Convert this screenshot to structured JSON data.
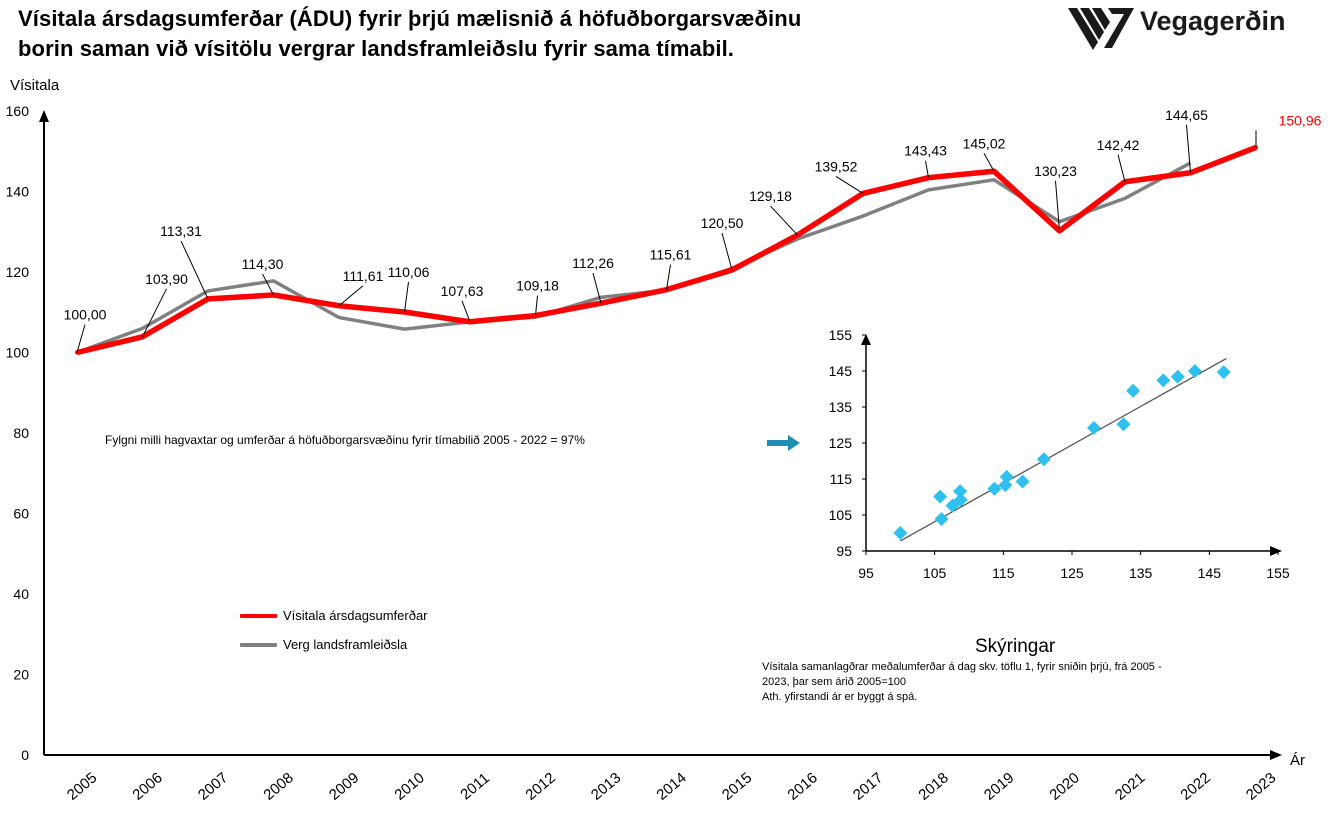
{
  "title": {
    "line1": "Vísitala ársdagsumferðar (ÁDU) fyrir þrjú mælisnið á höfuðborgarsvæðinu",
    "line2": "borin saman við vísitölu vergrar landsframleiðslu fyrir sama tímabil."
  },
  "logo": {
    "text": "Vegagerðin",
    "icon": "vegagerdin-logo-icon"
  },
  "note": "Fylgni milli hagvaxtar og umferðar á höfuðborgarsvæðinu fyrir tímabilið 2005 - 2022 = 97%",
  "legend": {
    "traffic": "Vísitala ársdagsumferðar",
    "gdp": "Verg landsframleiðsla"
  },
  "explanation": {
    "heading": "Skýringar",
    "line1": "Vísitala samanlagðrar meðalumferðar á dag  skv. töflu 1, fyrir sniðin  þrjú, frá 2005 -",
    "line2": "2023, þar sem árið 2005=100",
    "line3": "Ath. yfirstandi ár er byggt á spá."
  },
  "colors": {
    "traffic": "#ff0000",
    "gdp": "#808080",
    "scatter": "#2ec0ef",
    "arrow": "#1f8fb0"
  },
  "chart_data": [
    {
      "type": "line",
      "ylabel": "Vísitala",
      "xlabel": "Ár",
      "ylim": [
        0,
        160
      ],
      "yticks": [
        0,
        20,
        40,
        60,
        80,
        100,
        120,
        140,
        160
      ],
      "categories": [
        "2005",
        "2006",
        "2007",
        "2008",
        "2009",
        "2010",
        "2011",
        "2012",
        "2013",
        "2014",
        "2015",
        "2016",
        "2017",
        "2018",
        "2019",
        "2020",
        "2021",
        "2022",
        "2023"
      ],
      "series": [
        {
          "name": "Vísitala ársdagsumferðar",
          "values": [
            100.0,
            103.9,
            113.31,
            114.3,
            111.61,
            110.06,
            107.63,
            109.18,
            112.26,
            115.61,
            120.5,
            129.18,
            139.52,
            143.43,
            145.02,
            130.23,
            142.42,
            144.65,
            150.96
          ],
          "labels": [
            "100,00",
            "103,90",
            "113,31",
            "114,30",
            "111,61",
            "110,06",
            "107,63",
            "109,18",
            "112,26",
            "115,61",
            "120,50",
            "129,18",
            "139,52",
            "143,43",
            "145,02",
            "130,23",
            "142,42",
            "144,65",
            "150,96"
          ]
        },
        {
          "name": "Verg landsframleiðsla",
          "values": [
            100.0,
            106.0,
            115.3,
            117.8,
            108.7,
            105.8,
            107.6,
            108.8,
            113.7,
            115.5,
            120.9,
            128.2,
            133.9,
            140.4,
            142.9,
            132.5,
            138.3,
            147.1,
            null
          ]
        }
      ]
    },
    {
      "type": "scatter",
      "xlim": [
        95,
        155
      ],
      "ylim": [
        95,
        155
      ],
      "xticks": [
        95,
        105,
        115,
        125,
        135,
        145,
        155
      ],
      "yticks": [
        95,
        105,
        115,
        125,
        135,
        145,
        155
      ],
      "points": [
        {
          "x": 100.0,
          "y": 100.0
        },
        {
          "x": 106.0,
          "y": 103.9
        },
        {
          "x": 115.3,
          "y": 113.3
        },
        {
          "x": 117.8,
          "y": 114.3
        },
        {
          "x": 108.7,
          "y": 111.6
        },
        {
          "x": 105.8,
          "y": 110.1
        },
        {
          "x": 107.6,
          "y": 107.6
        },
        {
          "x": 108.8,
          "y": 109.2
        },
        {
          "x": 113.7,
          "y": 112.3
        },
        {
          "x": 115.5,
          "y": 115.6
        },
        {
          "x": 120.9,
          "y": 120.5
        },
        {
          "x": 128.2,
          "y": 129.2
        },
        {
          "x": 133.9,
          "y": 139.5
        },
        {
          "x": 140.4,
          "y": 143.4
        },
        {
          "x": 142.9,
          "y": 145.0
        },
        {
          "x": 132.5,
          "y": 130.2
        },
        {
          "x": 138.3,
          "y": 142.4
        },
        {
          "x": 147.1,
          "y": 144.7
        }
      ],
      "trendline": {
        "x": [
          100,
          147.5
        ],
        "y": [
          97.8,
          148.5
        ]
      }
    }
  ]
}
